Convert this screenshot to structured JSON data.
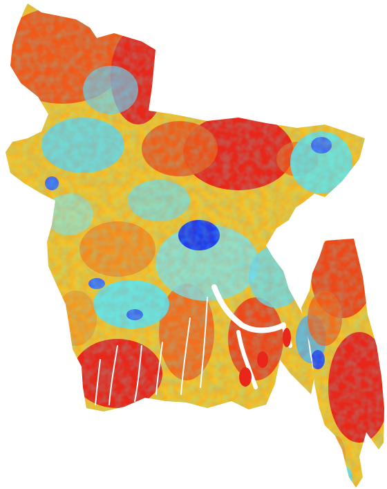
{
  "map": {
    "palette": {
      "deep_blue": "#1a3cf0",
      "blue": "#3c8cf5",
      "cyan": "#5ee6ee",
      "yellow": "#f6e12a",
      "orange": "#f79a1c",
      "red": "#ee3b16",
      "dark_red": "#e01a10"
    }
  }
}
